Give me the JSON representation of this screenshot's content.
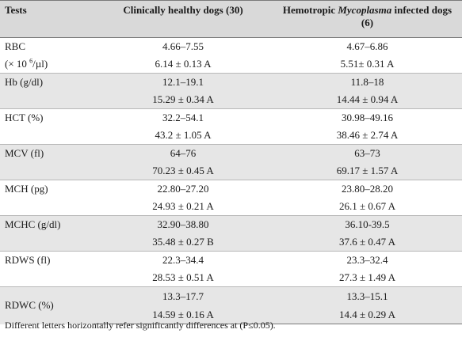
{
  "header": {
    "col1": "Tests",
    "col2": "Clinically healthy dogs (30)",
    "col3_pre": "Hemotropic ",
    "col3_italic": "Mycoplasma",
    "col3_post": " infected dogs",
    "col3_line2": "(6)"
  },
  "rows": [
    {
      "label": "RBC",
      "healthy": "4.66–7.55",
      "infected": "4.67–6.86"
    },
    {
      "label_pre": "(× 10 ",
      "label_sup": "6",
      "label_post": "/µl)",
      "healthy": "6.14 ± 0.13 A",
      "infected": "5.51± 0.31 A"
    },
    {
      "label": "Hb (g/dl)",
      "healthy": "12.1–19.1",
      "infected": "11.8–18"
    },
    {
      "label": "",
      "healthy": "15.29 ± 0.34 A",
      "infected": "14.44 ± 0.94 A"
    },
    {
      "label": "HCT (%)",
      "healthy": "32.2–54.1",
      "infected": "30.98–49.16"
    },
    {
      "label": "",
      "healthy": "43.2 ± 1.05 A",
      "infected": "38.46 ± 2.74 A"
    },
    {
      "label": "MCV (fl)",
      "healthy": "64–76",
      "infected": "63–73"
    },
    {
      "label": "",
      "healthy": "70.23 ± 0.45 A",
      "infected": "69.17 ± 1.57 A"
    },
    {
      "label": "MCH (pg)",
      "healthy": "22.80–27.20",
      "infected": "23.80–28.20"
    },
    {
      "label": "",
      "healthy": "24.93 ± 0.21 A",
      "infected": "26.1 ± 0.67 A"
    },
    {
      "label": "MCHC (g/dl)",
      "healthy": "32.90–38.80",
      "infected": "36.10-39.5"
    },
    {
      "label": "",
      "healthy": "35.48 ± 0.27 B",
      "infected": "37.6 ± 0.47 A"
    },
    {
      "label": "RDWS (fl)",
      "healthy": "22.3–34.4",
      "infected": "23.3–32.4"
    },
    {
      "label": "",
      "healthy": "28.53 ± 0.51 A",
      "infected": "27.3 ± 1.49 A"
    },
    {
      "label": "RDWC (%)",
      "healthy": "13.3–17.7",
      "infected": "13.3–15.1"
    },
    {
      "label": "",
      "healthy": "14.59 ± 0.16 A",
      "infected": "14.4 ± 0.29 A"
    }
  ],
  "footnote": "Different letters horizontally refer significantly differences at (P≤0.05)."
}
